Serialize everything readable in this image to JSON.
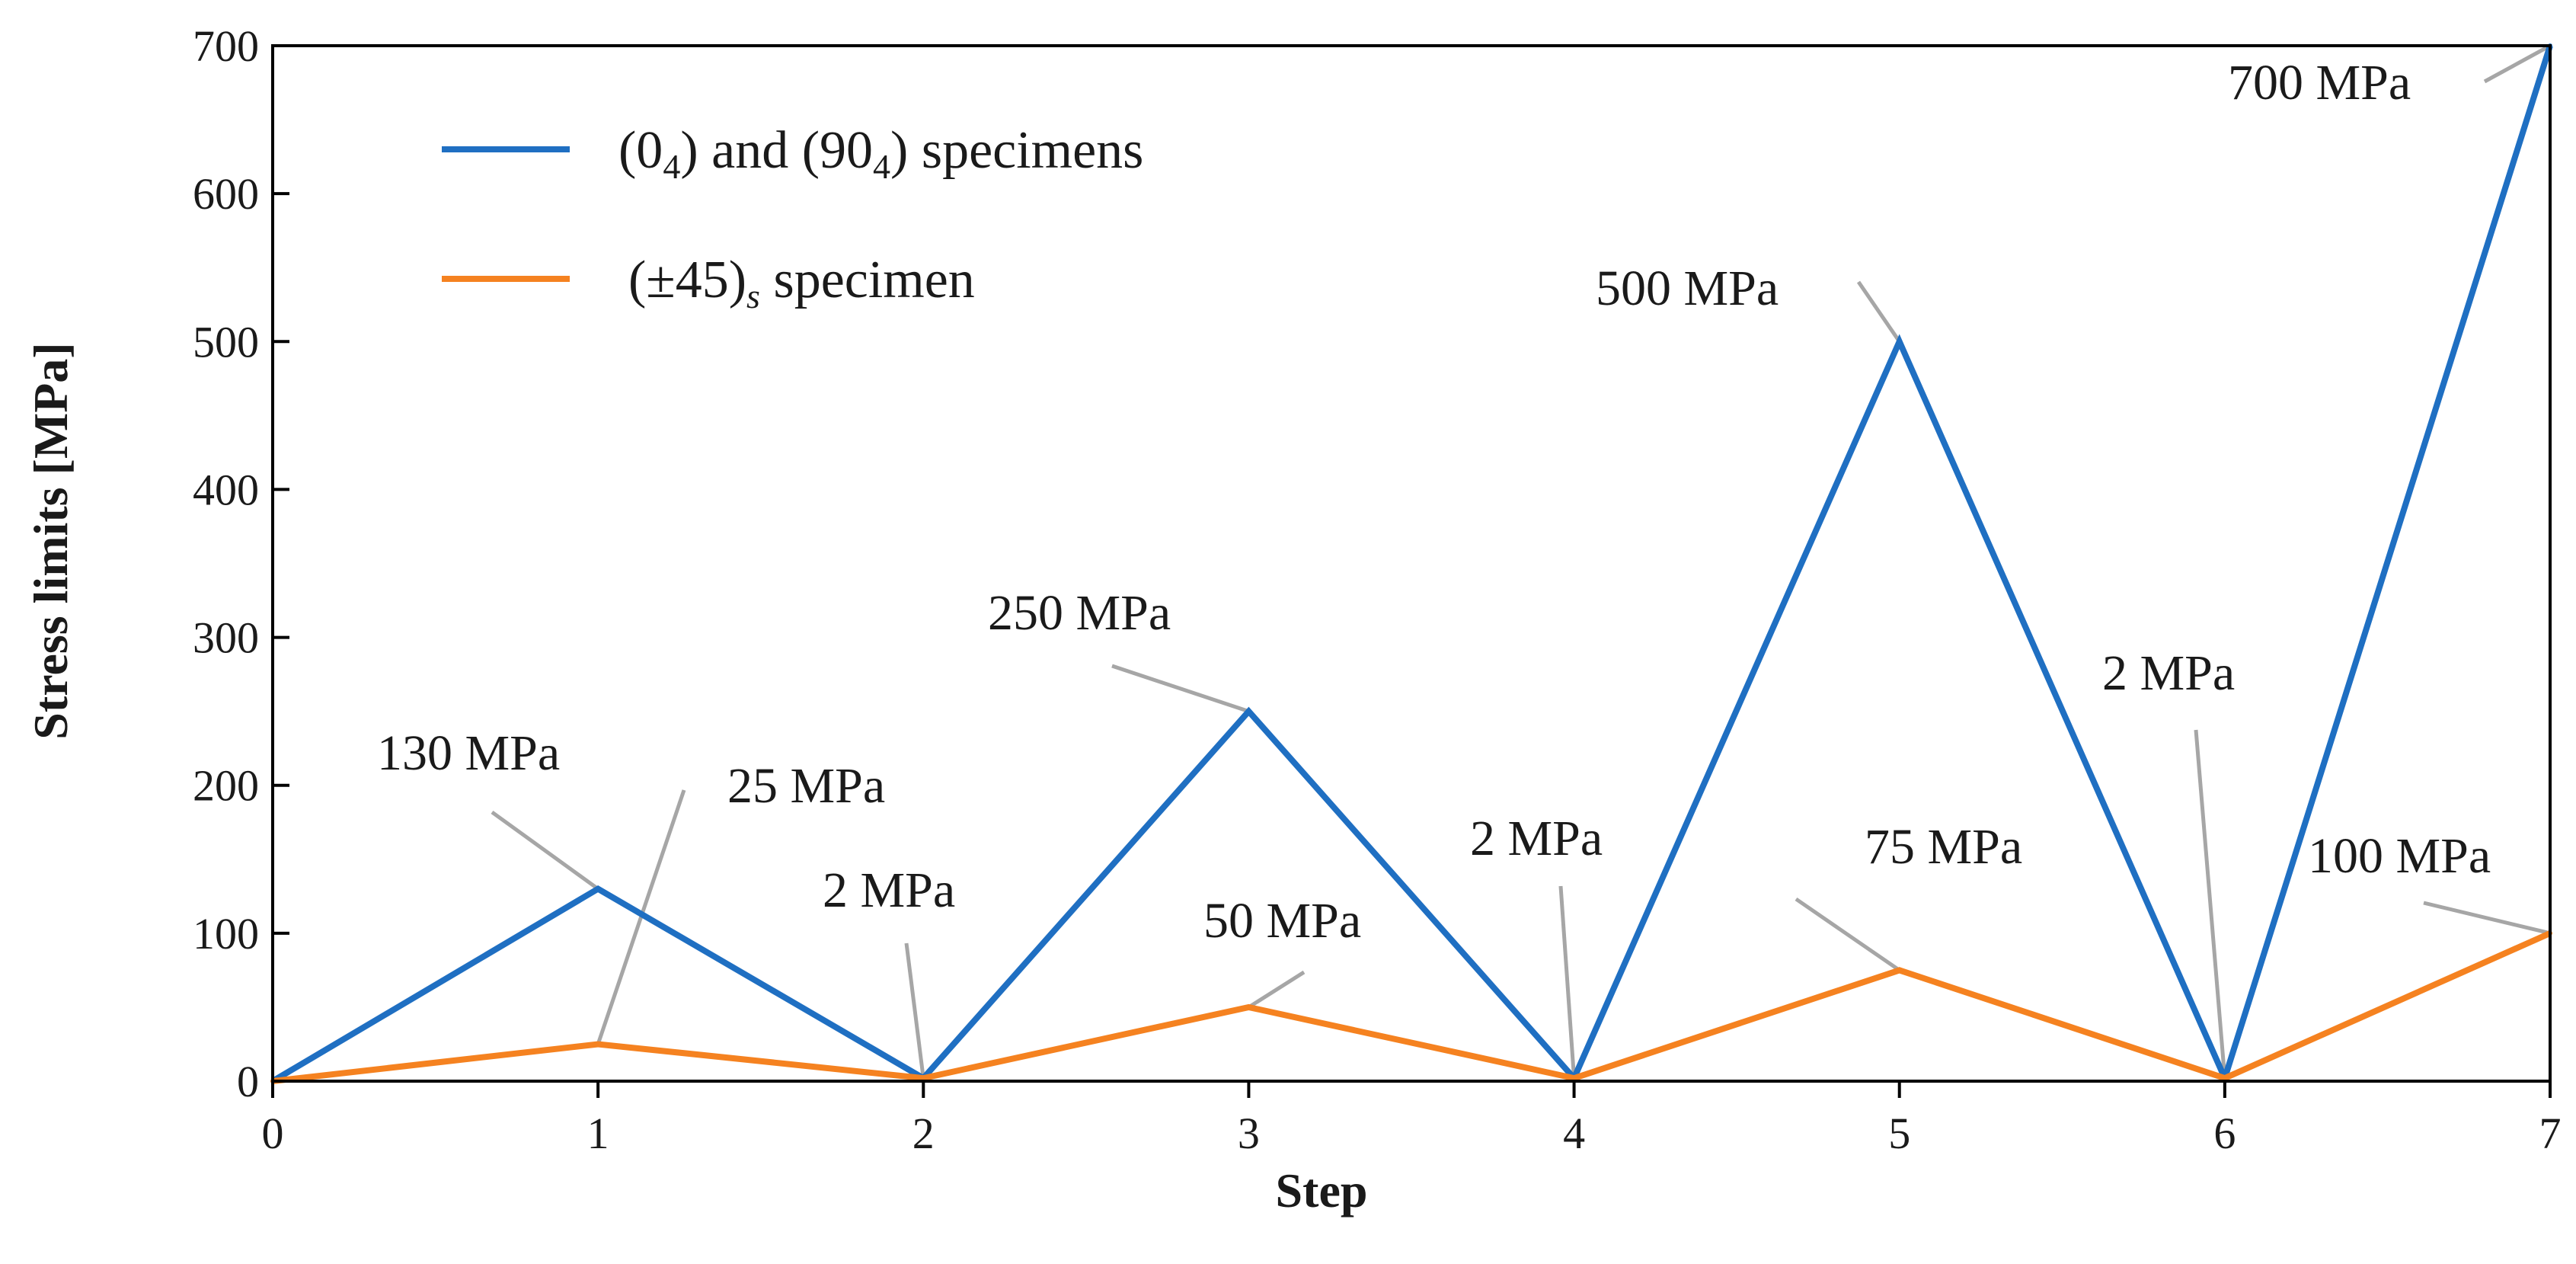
{
  "chart_data": {
    "type": "line",
    "title": "",
    "xlabel": "Step",
    "ylabel": "Stress limits [MPa]",
    "x": [
      0,
      1,
      2,
      3,
      4,
      5,
      6,
      7
    ],
    "xlim": [
      0,
      7
    ],
    "ylim": [
      0,
      700
    ],
    "xticks": [
      0,
      1,
      2,
      3,
      4,
      5,
      6,
      7
    ],
    "yticks": [
      0,
      100,
      200,
      300,
      400,
      500,
      600,
      700
    ],
    "grid": false,
    "legend_position": "top-left",
    "series": [
      {
        "name": "(0_4) and (90_4) specimens",
        "legend_parts": [
          "(0",
          "4",
          ") and (90",
          "4",
          ")  specimens"
        ],
        "color": "#1f6fc2",
        "values": [
          0,
          130,
          2,
          250,
          2,
          500,
          2,
          700
        ]
      },
      {
        "name": "(±45)_s specimen",
        "legend_parts": [
          "(±45)",
          "s",
          "  specimen"
        ],
        "color": "#f58220",
        "values": [
          0,
          25,
          2,
          50,
          2,
          75,
          2,
          100
        ]
      }
    ],
    "annotations": [
      {
        "text": "130 MPa",
        "series": 0,
        "x": 1,
        "y": 130
      },
      {
        "text": "25 MPa",
        "series": 1,
        "x": 1,
        "y": 25
      },
      {
        "text": "2 MPa",
        "series": 0,
        "x": 2,
        "y": 2
      },
      {
        "text": "250 MPa",
        "series": 0,
        "x": 3,
        "y": 250
      },
      {
        "text": "50 MPa",
        "series": 1,
        "x": 3,
        "y": 50
      },
      {
        "text": "2 MPa",
        "series": 0,
        "x": 4,
        "y": 2
      },
      {
        "text": "500 MPa",
        "series": 0,
        "x": 5,
        "y": 500
      },
      {
        "text": "75 MPa",
        "series": 1,
        "x": 5,
        "y": 75
      },
      {
        "text": "2 MPa",
        "series": 0,
        "x": 6,
        "y": 2
      },
      {
        "text": "700 MPa",
        "series": 0,
        "x": 7,
        "y": 700
      },
      {
        "text": "100 MPa",
        "series": 1,
        "x": 7,
        "y": 100
      }
    ],
    "leader_color": "#a6a6a6"
  }
}
